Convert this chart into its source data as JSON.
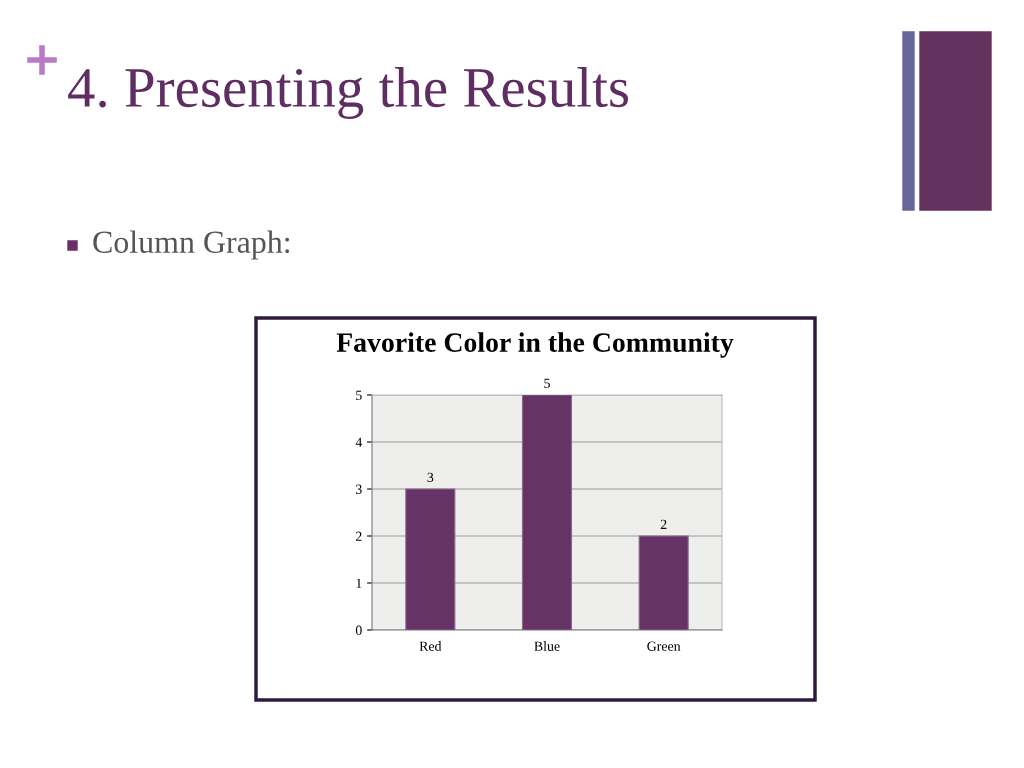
{
  "chart_data": {
    "type": "bar",
    "title": "Favorite Color in the Community",
    "annotations": [
      "4. Presenting the Results",
      "Column Graph:"
    ],
    "categories": [
      "Red",
      "Blue",
      "Green"
    ],
    "values": [
      3,
      5,
      2
    ],
    "color": "#663366",
    "ylim": [
      0,
      5
    ],
    "yticks": [
      0,
      1,
      2,
      3,
      4,
      5
    ],
    "grid": "y",
    "data_labels": true
  }
}
